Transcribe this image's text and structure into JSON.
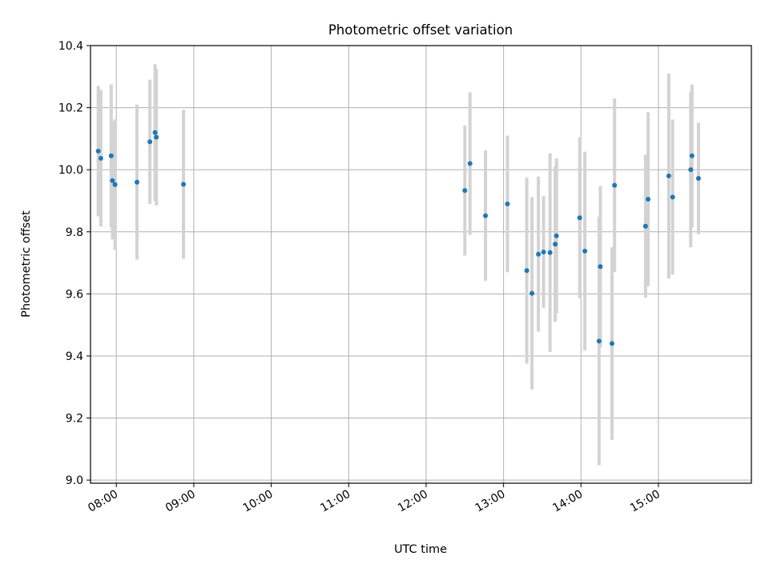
{
  "chart_data": {
    "type": "scatter",
    "title": "Photometric offset variation",
    "xlabel": "UTC time",
    "ylabel": "Photometric offset",
    "xlim": [
      "07:40",
      "16:12"
    ],
    "ylim": [
      8.99,
      10.4
    ],
    "x_ticks": [
      "08:00",
      "09:00",
      "10:00",
      "11:00",
      "12:00",
      "13:00",
      "14:00",
      "15:00"
    ],
    "y_ticks": [
      "9.0",
      "9.2",
      "9.4",
      "9.6",
      "9.8",
      "10.0",
      "10.2",
      "10.4"
    ],
    "grid": true,
    "legend": "none",
    "colors": {
      "point": "#1f77b4",
      "errorbar": "#d3d3d3",
      "grid": "#b0b0b0",
      "axes": "#000000"
    },
    "series": [
      {
        "points": [
          {
            "t": "07:46",
            "y": 10.06,
            "err": 0.21
          },
          {
            "t": "07:48",
            "y": 10.037,
            "err": 0.22
          },
          {
            "t": "07:56",
            "y": 10.045,
            "err": 0.23
          },
          {
            "t": "07:57",
            "y": 9.965,
            "err": 0.19
          },
          {
            "t": "07:59",
            "y": 9.952,
            "err": 0.21
          },
          {
            "t": "08:16",
            "y": 9.96,
            "err": 0.25
          },
          {
            "t": "08:26",
            "y": 10.09,
            "err": 0.2
          },
          {
            "t": "08:30",
            "y": 10.12,
            "err": 0.22
          },
          {
            "t": "08:31",
            "y": 10.105,
            "err": 0.22
          },
          {
            "t": "08:52",
            "y": 9.953,
            "err": 0.24
          },
          {
            "t": "12:30",
            "y": 9.933,
            "err": 0.21
          },
          {
            "t": "12:34",
            "y": 10.02,
            "err": 0.23
          },
          {
            "t": "12:46",
            "y": 9.852,
            "err": 0.21
          },
          {
            "t": "13:03",
            "y": 9.89,
            "err": 0.22
          },
          {
            "t": "13:18",
            "y": 9.675,
            "err": 0.3
          },
          {
            "t": "13:22",
            "y": 9.602,
            "err": 0.31
          },
          {
            "t": "13:27",
            "y": 9.728,
            "err": 0.25
          },
          {
            "t": "13:31",
            "y": 9.735,
            "err": 0.18
          },
          {
            "t": "13:36",
            "y": 9.733,
            "err": 0.32
          },
          {
            "t": "13:40",
            "y": 9.76,
            "err": 0.25
          },
          {
            "t": "13:41",
            "y": 9.787,
            "err": 0.25
          },
          {
            "t": "13:59",
            "y": 9.845,
            "err": 0.26
          },
          {
            "t": "14:03",
            "y": 9.738,
            "err": 0.32
          },
          {
            "t": "14:14",
            "y": 9.448,
            "err": 0.4
          },
          {
            "t": "14:15",
            "y": 9.688,
            "err": 0.26
          },
          {
            "t": "14:24",
            "y": 9.44,
            "err": 0.31
          },
          {
            "t": "14:26",
            "y": 9.95,
            "err": 0.28
          },
          {
            "t": "14:50",
            "y": 9.818,
            "err": 0.23
          },
          {
            "t": "14:52",
            "y": 9.905,
            "err": 0.28
          },
          {
            "t": "15:08",
            "y": 9.98,
            "err": 0.33
          },
          {
            "t": "15:11",
            "y": 9.912,
            "err": 0.25
          },
          {
            "t": "15:25",
            "y": 10.0,
            "err": 0.25
          },
          {
            "t": "15:26",
            "y": 10.045,
            "err": 0.23
          },
          {
            "t": "15:31",
            "y": 9.972,
            "err": 0.18
          }
        ]
      }
    ]
  }
}
